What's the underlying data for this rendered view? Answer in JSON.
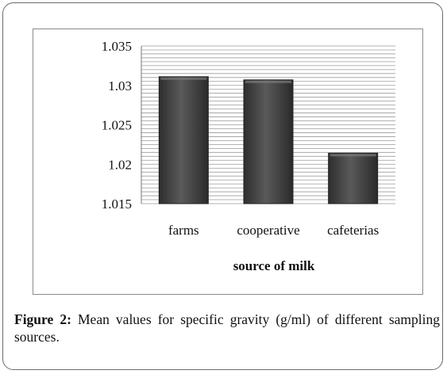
{
  "chart_data": {
    "type": "bar",
    "categories": [
      "farms",
      "cooperative",
      "cafeterias"
    ],
    "values": [
      1.0311,
      1.0307,
      1.0214
    ],
    "xlabel": "source of milk",
    "ylabel": "",
    "ylim": [
      1.015,
      1.035
    ],
    "yticks": [
      "1.015",
      "1.02",
      "1.025",
      "1.03",
      "1.035"
    ],
    "ytick_values": [
      1.015,
      1.02,
      1.025,
      1.03,
      1.035
    ],
    "grid": true,
    "legend": "none",
    "bar_color": "#4a4a4a"
  },
  "caption": {
    "label": "Figure 2:",
    "text": " Mean values for specific gravity (g/ml) of different sampling sources."
  }
}
